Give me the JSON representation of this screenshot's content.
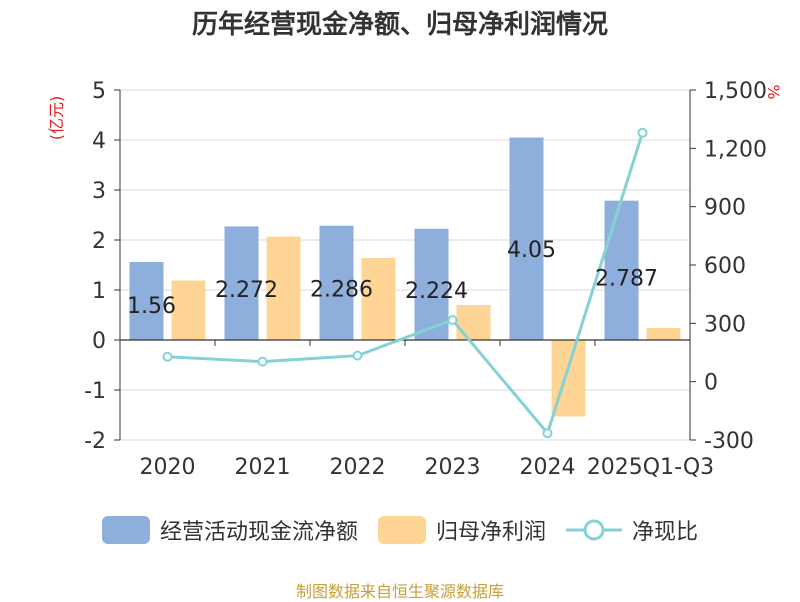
{
  "page": {
    "title": "历年经营现金净额、归母净利润情况",
    "source": "制图数据来自恒生聚源数据库"
  },
  "chart_data": {
    "type": "bar",
    "title": "历年经营现金净额、归母净利润情况",
    "categories": [
      "2020",
      "2021",
      "2022",
      "2023",
      "2024",
      "2025Q1-Q3"
    ],
    "y_left": {
      "label": "(亿元)",
      "ylim": [
        -2,
        5
      ],
      "ticks": [
        "-2",
        "-1",
        "0",
        "1",
        "2",
        "3",
        "4",
        "5"
      ]
    },
    "y_right": {
      "label": "%",
      "ylim": [
        -300,
        1500
      ],
      "ticks": [
        "-300",
        "0",
        "300",
        "600",
        "900",
        "1,200",
        "1,500"
      ]
    },
    "grid": true,
    "legend_position": "bottom",
    "series": [
      {
        "name": "经营活动现金流净额",
        "type": "bar",
        "axis": "left",
        "color": "#8eaedb",
        "values": [
          1.56,
          2.272,
          2.286,
          2.224,
          4.05,
          2.787
        ],
        "labels": [
          "1.56",
          "2.272",
          "2.286",
          "2.224",
          "4.05",
          "2.787"
        ]
      },
      {
        "name": "归母净利润",
        "type": "bar",
        "axis": "left",
        "color": "#fed594",
        "values": [
          1.19,
          2.07,
          1.64,
          0.7,
          -1.53,
          0.24
        ]
      },
      {
        "name": "净现比",
        "type": "line",
        "axis": "right",
        "color": "#84d2d6",
        "values": [
          128,
          103,
          134,
          317,
          -265,
          1280
        ]
      }
    ]
  }
}
